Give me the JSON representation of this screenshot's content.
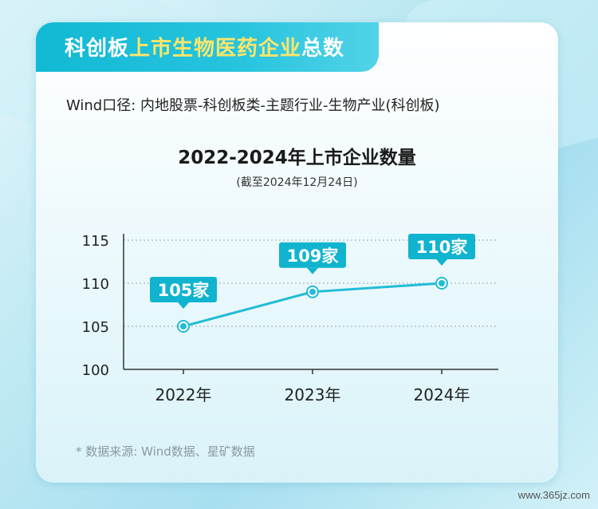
{
  "header": {
    "title_prefix": "科创板",
    "title_highlight": "上市生物医药企业",
    "title_suffix": "总数"
  },
  "source_line": "Wind口径: 内地股票-科创板类-主题行业-生物产业(科创板)",
  "chart_data": {
    "type": "line",
    "title": "2022-2024年上市企业数量",
    "subtitle": "(截至2024年12月24日)",
    "categories": [
      "2022年",
      "2023年",
      "2024年"
    ],
    "values": [
      105,
      109,
      110
    ],
    "data_labels": [
      "105家",
      "109家",
      "110家"
    ],
    "yticks": [
      100,
      105,
      110,
      115
    ],
    "ylim": [
      100,
      115
    ],
    "grid": true,
    "colors": {
      "line": "#22bcd6",
      "label_bg": "#10b4cf",
      "grid": "#9aa7ad"
    }
  },
  "footnote": "* 数据来源: Wind数据、星矿数据",
  "watermark": "www.365jz.com"
}
